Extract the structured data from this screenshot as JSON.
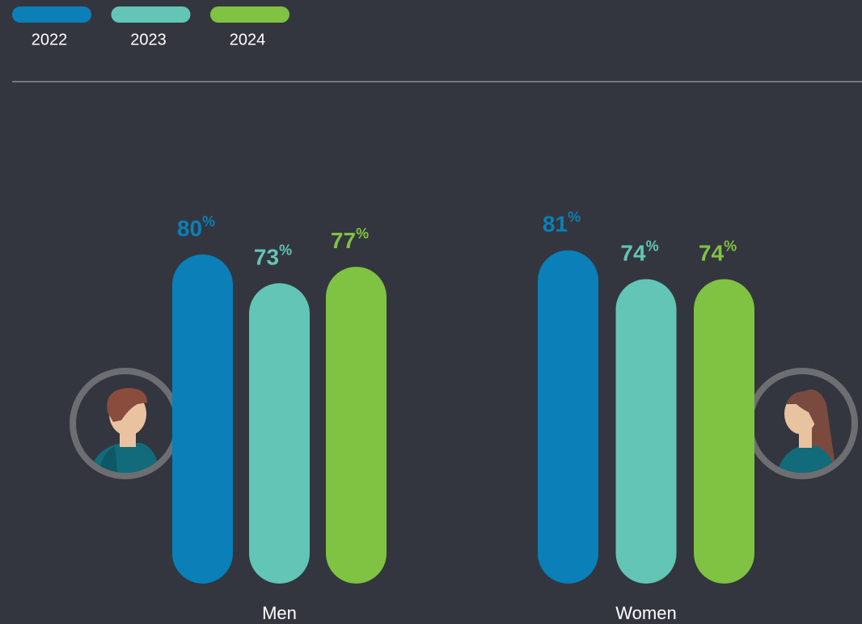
{
  "chart_data": {
    "type": "bar",
    "categories": [
      "Men",
      "Women"
    ],
    "series": [
      {
        "name": "2022",
        "color": "#0a7fb8",
        "values": [
          80,
          81
        ],
        "value_labels": [
          "80%",
          "81%"
        ]
      },
      {
        "name": "2023",
        "color": "#62c5b5",
        "values": [
          73,
          74
        ],
        "value_labels": [
          "73%",
          "74%"
        ]
      },
      {
        "name": "2024",
        "color": "#80c242",
        "values": [
          77,
          74
        ],
        "value_labels": [
          "77%",
          "74%"
        ]
      }
    ],
    "ylim": [
      0,
      100
    ]
  }
}
